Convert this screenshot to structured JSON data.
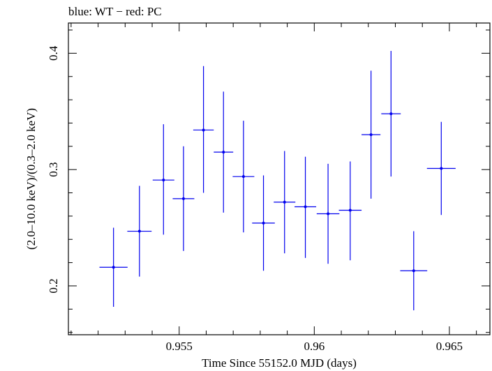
{
  "chart_data": {
    "type": "scatter",
    "title": "blue: WT − red: PC",
    "xlabel": "Time Since 55152.0 MJD (days)",
    "ylabel": "(2.0–10.0 keV)/(0.3–2.0 keV)",
    "xlim": [
      0.9509,
      0.9665
    ],
    "ylim": [
      0.158,
      0.426
    ],
    "x_ticks": [
      {
        "value": 0.955,
        "label": "0.955"
      },
      {
        "value": 0.96,
        "label": "0.96"
      },
      {
        "value": 0.965,
        "label": "0.965"
      }
    ],
    "y_ticks": [
      {
        "value": 0.2,
        "label": "0.2"
      },
      {
        "value": 0.3,
        "label": "0.3"
      },
      {
        "value": 0.4,
        "label": "0.4"
      }
    ],
    "x_minor_step": 0.001,
    "y_minor_step": 0.02,
    "grid": false,
    "series": [
      {
        "name": "WT",
        "color": "#0000ee",
        "points": [
          {
            "x": 0.95257,
            "xerr": 0.00052,
            "y": 0.216,
            "yerr_low": 0.034,
            "yerr_high": 0.034
          },
          {
            "x": 0.95353,
            "xerr": 0.00045,
            "y": 0.247,
            "yerr_low": 0.039,
            "yerr_high": 0.039
          },
          {
            "x": 0.95442,
            "xerr": 0.0004,
            "y": 0.291,
            "yerr_low": 0.047,
            "yerr_high": 0.048
          },
          {
            "x": 0.95516,
            "xerr": 0.0004,
            "y": 0.275,
            "yerr_low": 0.045,
            "yerr_high": 0.045
          },
          {
            "x": 0.9559,
            "xerr": 0.00038,
            "y": 0.334,
            "yerr_low": 0.054,
            "yerr_high": 0.055
          },
          {
            "x": 0.95664,
            "xerr": 0.00036,
            "y": 0.315,
            "yerr_low": 0.052,
            "yerr_high": 0.052
          },
          {
            "x": 0.95738,
            "xerr": 0.0004,
            "y": 0.294,
            "yerr_low": 0.048,
            "yerr_high": 0.048
          },
          {
            "x": 0.95812,
            "xerr": 0.00042,
            "y": 0.254,
            "yerr_low": 0.041,
            "yerr_high": 0.041
          },
          {
            "x": 0.9589,
            "xerr": 0.0004,
            "y": 0.272,
            "yerr_low": 0.044,
            "yerr_high": 0.044
          },
          {
            "x": 0.95967,
            "xerr": 0.0004,
            "y": 0.268,
            "yerr_low": 0.044,
            "yerr_high": 0.043
          },
          {
            "x": 0.96051,
            "xerr": 0.00042,
            "y": 0.262,
            "yerr_low": 0.043,
            "yerr_high": 0.043
          },
          {
            "x": 0.96133,
            "xerr": 0.00042,
            "y": 0.265,
            "yerr_low": 0.043,
            "yerr_high": 0.042
          },
          {
            "x": 0.9621,
            "xerr": 0.00035,
            "y": 0.33,
            "yerr_low": 0.055,
            "yerr_high": 0.055
          },
          {
            "x": 0.96284,
            "xerr": 0.00036,
            "y": 0.348,
            "yerr_low": 0.054,
            "yerr_high": 0.054
          },
          {
            "x": 0.96368,
            "xerr": 0.0005,
            "y": 0.213,
            "yerr_low": 0.034,
            "yerr_high": 0.034
          },
          {
            "x": 0.9647,
            "xerr": 0.00053,
            "y": 0.301,
            "yerr_low": 0.04,
            "yerr_high": 0.04
          }
        ]
      }
    ]
  }
}
